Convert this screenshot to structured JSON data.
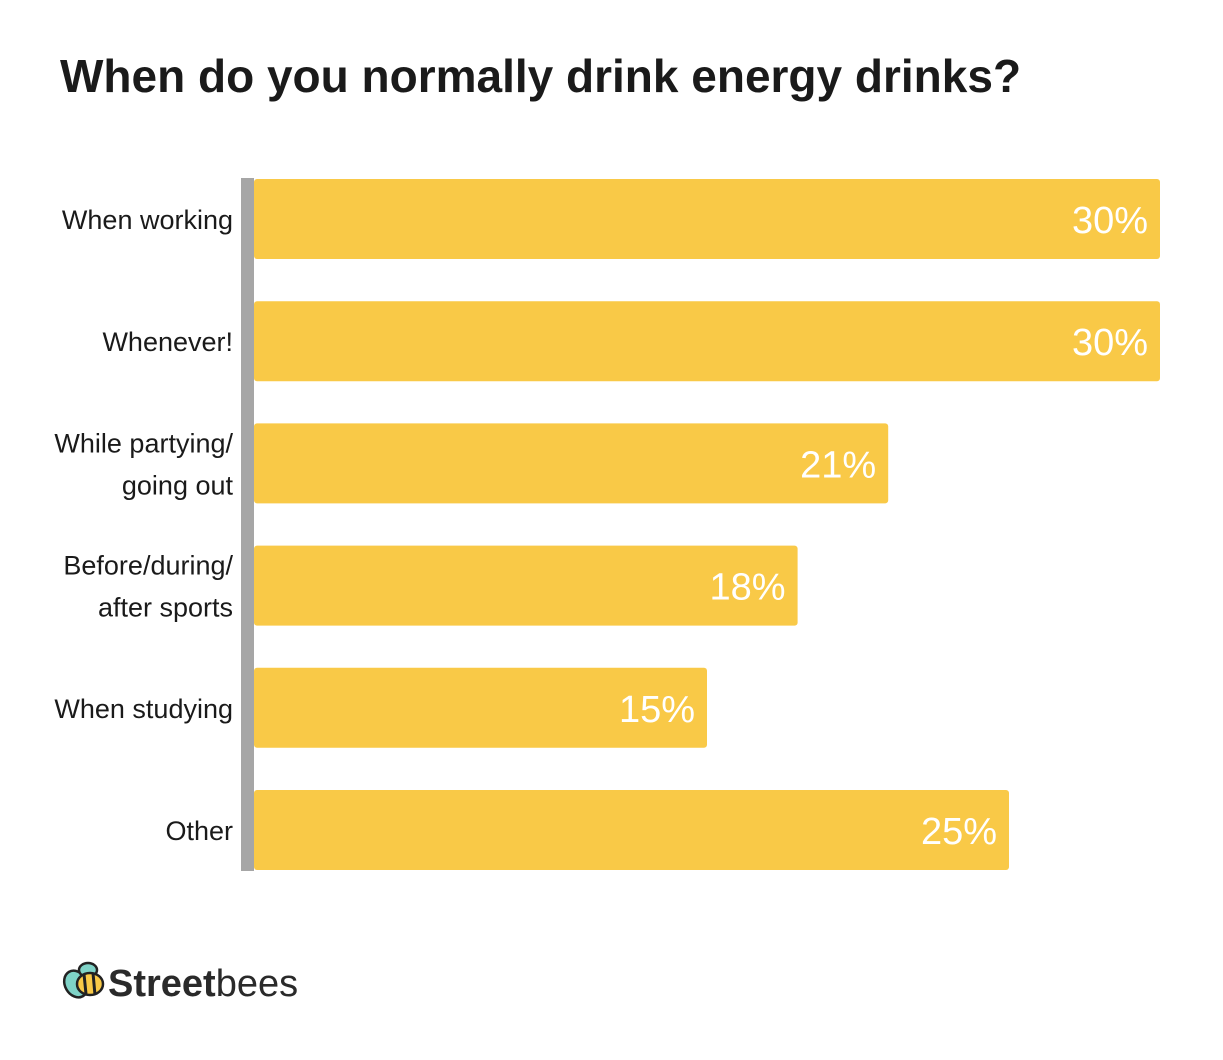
{
  "chart_data": {
    "type": "bar",
    "orientation": "horizontal",
    "title": "When do you normally drink energy drinks?",
    "categories": [
      [
        "When working"
      ],
      [
        "Whenever!"
      ],
      [
        "While partying/",
        "going out"
      ],
      [
        "Before/during/",
        "after sports"
      ],
      [
        "When studying"
      ],
      [
        "Other"
      ]
    ],
    "values": [
      30,
      30,
      21,
      18,
      15,
      25
    ],
    "value_labels": [
      "30%",
      "30%",
      "21%",
      "18%",
      "15%",
      "25%"
    ],
    "xlim": [
      0,
      30
    ],
    "grid": false,
    "bar_color": "#f9c947",
    "axis_color": "#a6a6a6"
  },
  "branding": {
    "logo_text_bold": "Street",
    "logo_text_light": "bees",
    "logo_icon": "bee-icon"
  }
}
